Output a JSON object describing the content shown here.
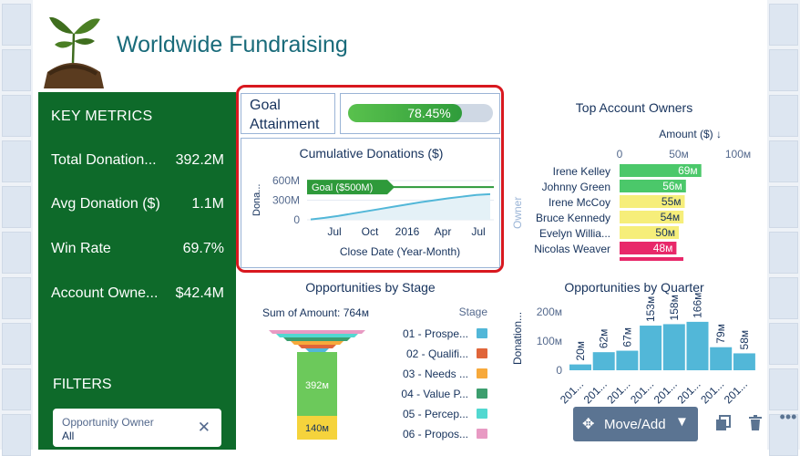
{
  "title": "Worldwide Fundraising",
  "metrics": {
    "heading": "KEY METRICS",
    "rows": [
      {
        "label": "Total Donation...",
        "value": "392.2M"
      },
      {
        "label": "Avg Donation ($)",
        "value": "1.1M"
      },
      {
        "label": "Win Rate",
        "value": "69.7%"
      },
      {
        "label": "Account Owne...",
        "value": "$42.4M"
      }
    ],
    "filters_heading": "FILTERS",
    "filter": {
      "label": "Opportunity Owner",
      "value": "All"
    }
  },
  "goal": {
    "label_line1": "Goal",
    "label_line2": "Attainment",
    "percent_text": "78.45%",
    "percent": 78.45
  },
  "cumulative": {
    "title": "Cumulative Donations ($)",
    "ylabel": "Dona...",
    "xlabel": "Close Date (Year-Month)",
    "yticks": [
      "600M",
      "300M",
      "0"
    ],
    "xticks": [
      "Jul",
      "Oct",
      "2016",
      "Apr",
      "Jul"
    ],
    "goal_label": "Goal ($500M)"
  },
  "owners": {
    "title": "Top Account Owners",
    "measure": "Amount ($) ↓",
    "axis_label": "Owner",
    "ticks": [
      "0",
      "50м",
      "100м"
    ]
  },
  "stage": {
    "title": "Opportunities by Stage",
    "sum_label": "Sum of Amount: 764м",
    "legend_title": "Stage",
    "funnel_labels": [
      "392м",
      "140м"
    ]
  },
  "quarter": {
    "title": "Opportunities by Quarter",
    "ylabel": "Donation...",
    "yticks": [
      "200м",
      "100м",
      "0"
    ],
    "xtick": "201..."
  },
  "toolbar": {
    "move_add": "Move/Add"
  },
  "colors": {
    "metrics_bg": "#0e6a2a",
    "title": "#196b7a",
    "bar_blue": "#52b7d8",
    "bar_green": "#4bc86a",
    "bar_yellow": "#f6ee7a",
    "bar_pink": "#e8286a",
    "selection": "#d8181f"
  },
  "chart_data": [
    {
      "type": "bar",
      "title": "Top Account Owners",
      "xlabel": "Amount ($) ↓",
      "ylabel": "Owner",
      "categories": [
        "Irene Kelley",
        "Johnny Green",
        "Irene McCoy",
        "Bruce Kennedy",
        "Evelyn Willia...",
        "Nicolas Weaver"
      ],
      "values": [
        69,
        56,
        55,
        54,
        50,
        48
      ],
      "value_labels": [
        "69м",
        "56м",
        "55м",
        "54м",
        "50м",
        "48м"
      ],
      "bar_colors": [
        "#4bc86a",
        "#4bc86a",
        "#f6ee7a",
        "#f6ee7a",
        "#f6ee7a",
        "#e8286a"
      ],
      "xlim": [
        0,
        100
      ]
    },
    {
      "type": "bar",
      "title": "Opportunities by Quarter",
      "ylabel": "Donation...",
      "categories": [
        "201...",
        "201...",
        "201...",
        "201...",
        "201...",
        "201...",
        "201...",
        "201..."
      ],
      "values": [
        20,
        62,
        67,
        153,
        158,
        166,
        79,
        58
      ],
      "value_labels": [
        "20м",
        "62м",
        "67м",
        "153м",
        "158м",
        "166м",
        "79м",
        "58м"
      ],
      "ylim": [
        0,
        200
      ]
    },
    {
      "type": "line",
      "title": "Cumulative Donations ($)",
      "xlabel": "Close Date (Year-Month)",
      "ylabel": "Dona...",
      "ylim": [
        0,
        600
      ],
      "goal": 500,
      "values": [
        5,
        30,
        60,
        95,
        130,
        165,
        200,
        235,
        270,
        300,
        330,
        355,
        380,
        392
      ]
    },
    {
      "type": "bar",
      "title": "Opportunities by Stage",
      "legend": [
        "01 - Prospe...",
        "02 - Qualifi...",
        "03 - Needs ...",
        "04 - Value P...",
        "05 - Percep...",
        "06 - Propos..."
      ],
      "legend_colors": [
        "#52b7d8",
        "#e0653a",
        "#f7a93b",
        "#3c9e6e",
        "#52d8d0",
        "#e89ac3"
      ]
    }
  ]
}
